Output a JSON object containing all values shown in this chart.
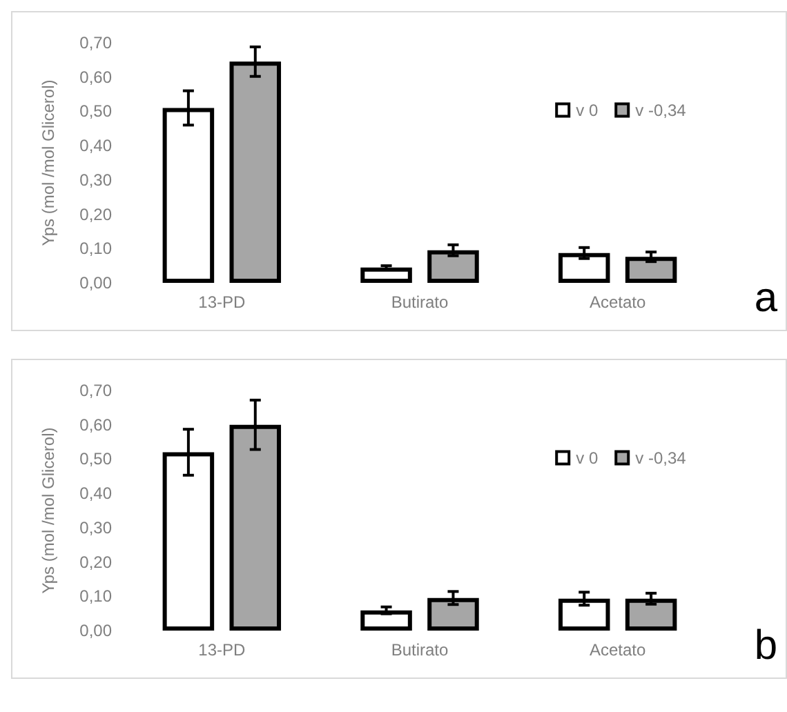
{
  "chart_data": [
    {
      "type": "bar",
      "ylabel": "Yps (mol /mol Glicerol)",
      "categories": [
        "13-PD",
        "Butirato",
        "Acetato"
      ],
      "series": [
        {
          "name": "v 0",
          "color": "#ffffff",
          "values": [
            0.51,
            0.045,
            0.087
          ],
          "errors": [
            0.05,
            0.005,
            0.016
          ]
        },
        {
          "name": "v -0,34",
          "color": "#a6a6a6",
          "values": [
            0.645,
            0.095,
            0.076
          ],
          "errors": [
            0.043,
            0.016,
            0.014
          ]
        }
      ],
      "ylim": [
        0,
        0.7
      ],
      "yticks": [
        {
          "value": 0,
          "label": "0,00"
        },
        {
          "value": 0.1,
          "label": "0,10"
        },
        {
          "value": 0.2,
          "label": "0,20"
        },
        {
          "value": 0.3,
          "label": "0,30"
        },
        {
          "value": 0.4,
          "label": "0,40"
        },
        {
          "value": 0.5,
          "label": "0,50"
        },
        {
          "value": 0.6,
          "label": "0,60"
        },
        {
          "value": 0.7,
          "label": "0,70"
        }
      ],
      "grid": false,
      "legend": "top right",
      "annotations": [
        "a"
      ]
    },
    {
      "type": "bar",
      "ylabel": "Yps (mol /mol Glicerol)",
      "categories": [
        "13-PD",
        "Butirato",
        "Acetato"
      ],
      "series": [
        {
          "name": "v 0",
          "color": "#ffffff",
          "values": [
            0.52,
            0.059,
            0.093
          ],
          "errors": [
            0.067,
            0.01,
            0.019
          ]
        },
        {
          "name": "v -0,34",
          "color": "#a6a6a6",
          "values": [
            0.6,
            0.095,
            0.093
          ],
          "errors": [
            0.072,
            0.019,
            0.016
          ]
        }
      ],
      "ylim": [
        0,
        0.7
      ],
      "yticks": [
        {
          "value": 0,
          "label": "0,00"
        },
        {
          "value": 0.1,
          "label": "0,10"
        },
        {
          "value": 0.2,
          "label": "0,20"
        },
        {
          "value": 0.3,
          "label": "0,30"
        },
        {
          "value": 0.4,
          "label": "0,40"
        },
        {
          "value": 0.5,
          "label": "0,50"
        },
        {
          "value": 0.6,
          "label": "0,60"
        },
        {
          "value": 0.7,
          "label": "0,70"
        }
      ],
      "grid": false,
      "legend": "top right",
      "annotations": [
        "b"
      ]
    }
  ]
}
